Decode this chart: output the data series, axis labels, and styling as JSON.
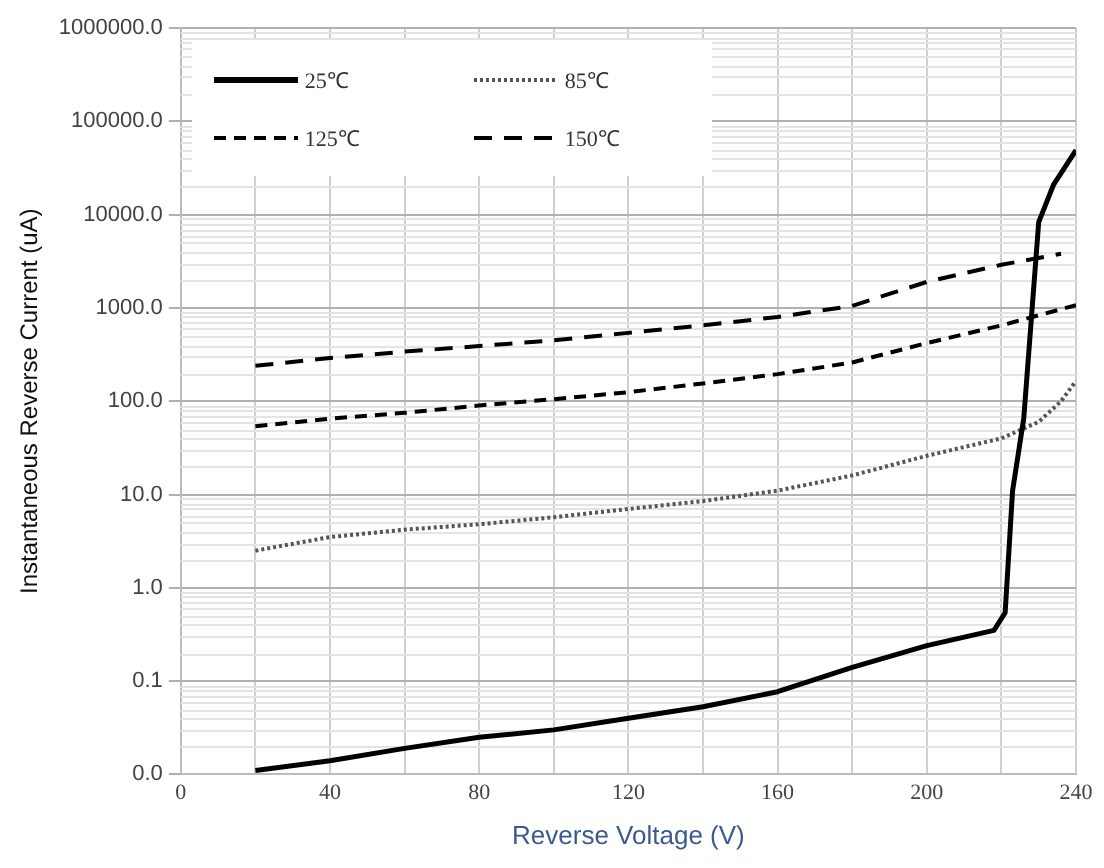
{
  "chart_data": {
    "type": "line",
    "xlabel": "Reverse Voltage (V)",
    "ylabel": "Instantaneous Reverse Current (uA)",
    "log": "y",
    "grid": true,
    "legend": "top left",
    "marker": "none",
    "xlim": [
      0,
      240
    ],
    "xticks": [
      0,
      {
        "value": 20,
        "label": null
      },
      40,
      {
        "value": 60,
        "label": null
      },
      80,
      {
        "value": 100,
        "label": null
      },
      120,
      {
        "value": 140,
        "label": null
      },
      160,
      {
        "value": 180,
        "label": null
      },
      200,
      {
        "value": 220,
        "label": null
      },
      240
    ],
    "ylim": [
      0.01,
      1000000
    ],
    "yticks": [
      {
        "value": 0.01,
        "label": "0.0"
      },
      {
        "value": 0.1,
        "label": "0.1"
      },
      {
        "value": 1,
        "label": "1.0"
      },
      {
        "value": 10,
        "label": "10.0"
      },
      {
        "value": 100,
        "label": "100.0"
      },
      {
        "value": 1000,
        "label": "1000.0"
      },
      {
        "value": 10000,
        "label": "10000.0"
      },
      {
        "value": 100000,
        "label": "100000.0"
      },
      {
        "value": 1000000,
        "label": "1000000.0"
      }
    ],
    "series": [
      {
        "name": "25℃",
        "color": "#000000",
        "line_style": "solid",
        "x": [
          20,
          40,
          60,
          80,
          100,
          120,
          140,
          160,
          180,
          200,
          218,
          221,
          223,
          226,
          230,
          234,
          240
        ],
        "values": [
          0.011,
          0.014,
          0.019,
          0.025,
          0.03,
          0.04,
          0.053,
          0.077,
          0.14,
          0.24,
          0.35,
          0.54,
          11,
          66,
          8300,
          21000,
          49000
        ]
      },
      {
        "name": "85℃",
        "color": "#555555",
        "line_style": "dotted",
        "x": [
          20,
          40,
          60,
          80,
          100,
          120,
          140,
          160,
          180,
          200,
          220,
          230,
          236,
          240
        ],
        "values": [
          2.5,
          3.5,
          4.2,
          4.8,
          5.7,
          7,
          8.5,
          11,
          16,
          26,
          40,
          60,
          100,
          165
        ]
      },
      {
        "name": "125℃",
        "color": "#000000",
        "line_style": "dashed",
        "x": [
          20,
          40,
          60,
          80,
          100,
          120,
          140,
          160,
          180,
          200,
          220,
          240
        ],
        "values": [
          54,
          65,
          75,
          90,
          105,
          125,
          155,
          195,
          260,
          420,
          650,
          1070
        ]
      },
      {
        "name": "150℃",
        "color": "#000000",
        "line_style": "dashed",
        "x": [
          20,
          40,
          60,
          80,
          100,
          120,
          140,
          160,
          180,
          200,
          220,
          236
        ],
        "values": [
          240,
          290,
          340,
          390,
          450,
          540,
          650,
          800,
          1050,
          1900,
          2900,
          3800
        ]
      }
    ]
  }
}
